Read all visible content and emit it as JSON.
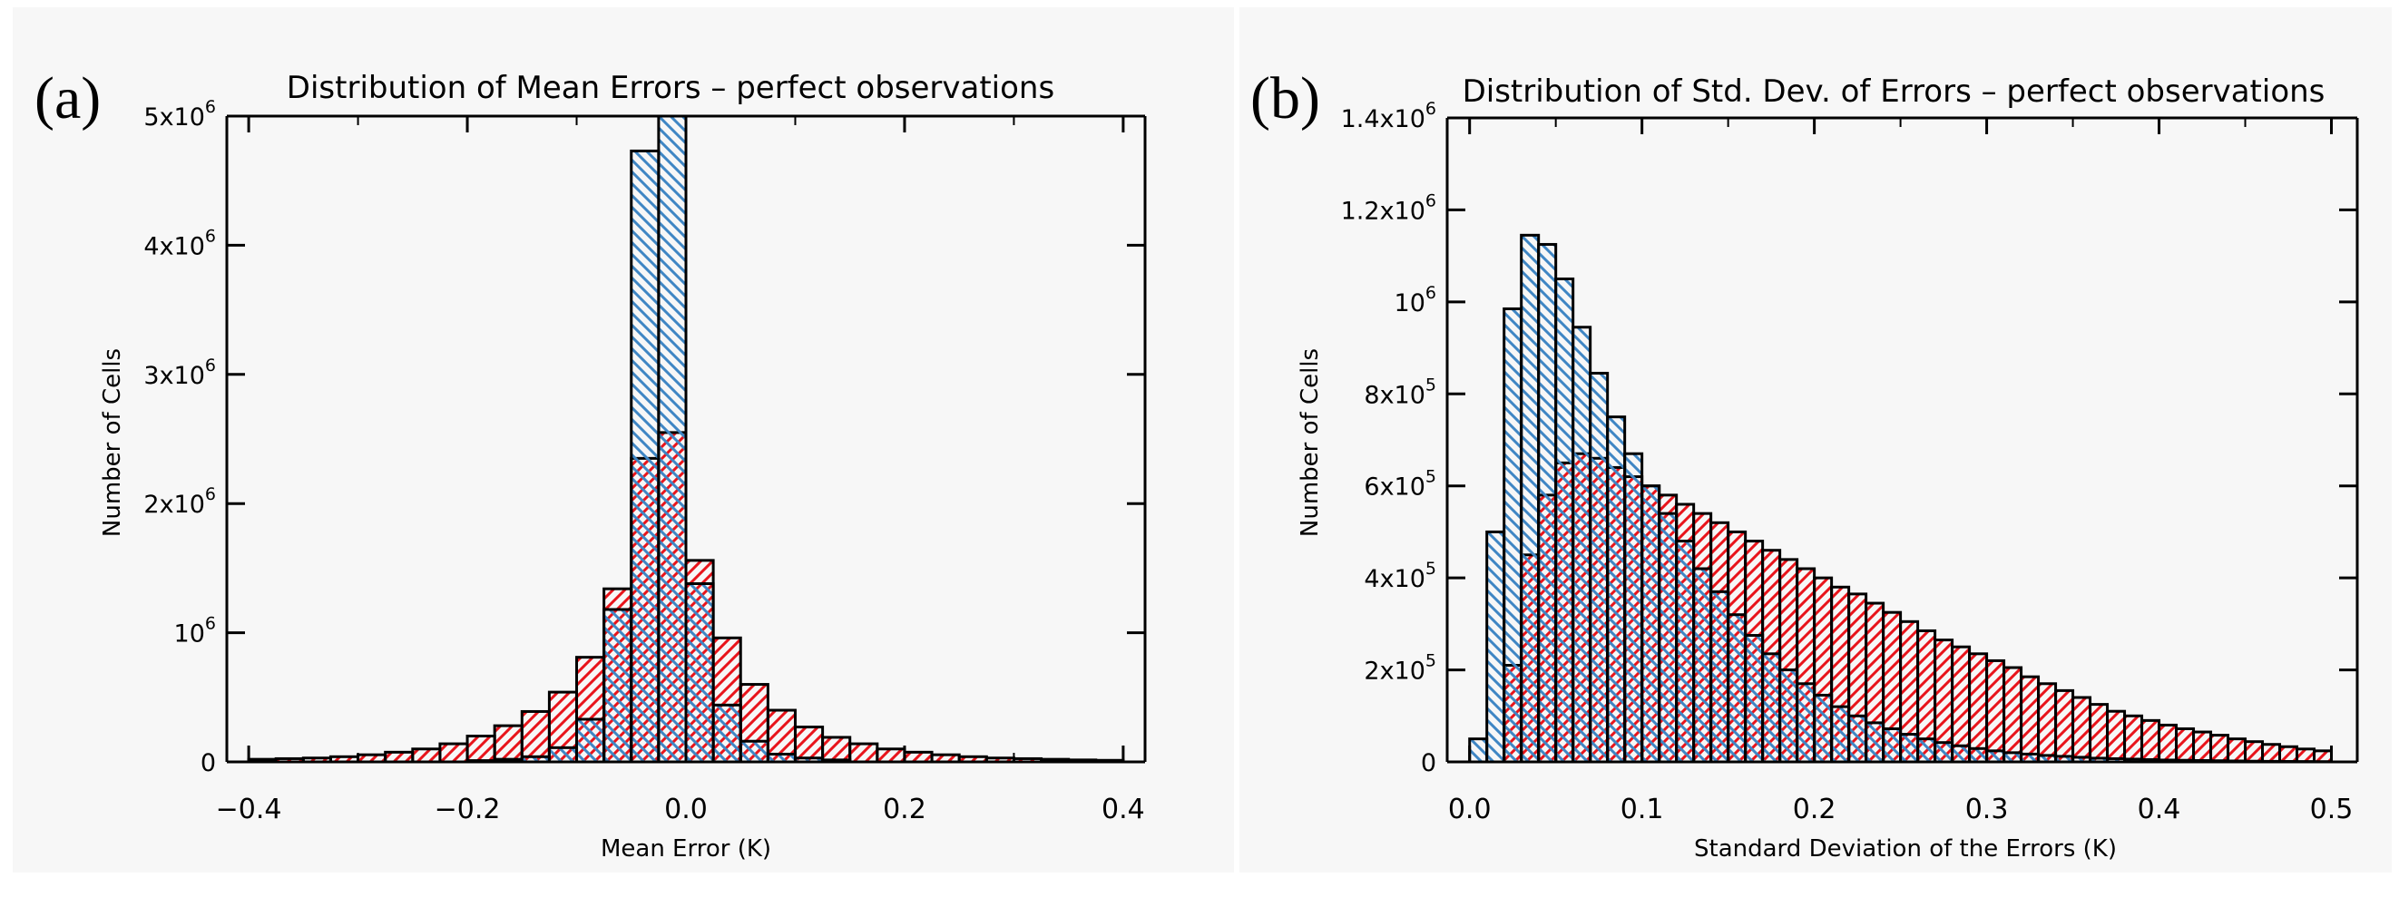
{
  "colors": {
    "background": "#ffffff",
    "panel_background": "#f7f7f7",
    "axis": "#000000",
    "series_red": "#e8141b",
    "series_blue": "#3f86c4"
  },
  "chart_data": [
    {
      "type": "bar",
      "panel_label": "(a)",
      "title": "Distribution of Mean Errors – perfect observations",
      "xlabel": "Mean Error (K)",
      "ylabel": "Number of Cells",
      "xlim": [
        -0.42,
        0.42
      ],
      "ylim": [
        0,
        5000000
      ],
      "grid": false,
      "xticks": [
        {
          "value": -0.4,
          "label": "−0.4"
        },
        {
          "value": -0.2,
          "label": "−0.2"
        },
        {
          "value": 0.0,
          "label": "0.0"
        },
        {
          "value": 0.2,
          "label": "0.2"
        },
        {
          "value": 0.4,
          "label": "0.4"
        }
      ],
      "yticks": [
        {
          "value": 0,
          "base": "0",
          "exp": ""
        },
        {
          "value": 1000000,
          "base": "10",
          "exp": "6"
        },
        {
          "value": 2000000,
          "base": "2x10",
          "exp": "6"
        },
        {
          "value": 3000000,
          "base": "3x10",
          "exp": "6"
        },
        {
          "value": 4000000,
          "base": "4x10",
          "exp": "6"
        },
        {
          "value": 5000000,
          "base": "5x10",
          "exp": "6"
        }
      ],
      "bin_start": -0.4,
      "bin_width": 0.025,
      "series": [
        {
          "name": "red",
          "pattern": "red-hatch",
          "values": [
            20000,
            25000,
            30000,
            40000,
            55000,
            75000,
            100000,
            140000,
            200000,
            280000,
            390000,
            540000,
            810000,
            1340000,
            2350000,
            2550000,
            1560000,
            960000,
            600000,
            400000,
            270000,
            190000,
            140000,
            100000,
            75000,
            55000,
            40000,
            30000,
            25000,
            20000,
            15000,
            12000
          ]
        },
        {
          "name": "blue",
          "pattern": "blue-hatch",
          "values": [
            0,
            0,
            0,
            0,
            0,
            0,
            0,
            0,
            10000,
            20000,
            40000,
            110000,
            330000,
            1180000,
            4730000,
            5000000,
            1380000,
            440000,
            160000,
            60000,
            30000,
            15000,
            0,
            0,
            0,
            0,
            0,
            0,
            0,
            0,
            0,
            0
          ]
        }
      ]
    },
    {
      "type": "bar",
      "panel_label": "(b)",
      "title": "Distribution of Std. Dev. of Errors – perfect observations",
      "xlabel": "Standard Deviation of the Errors (K)",
      "ylabel": "Number of Cells",
      "xlim": [
        -0.013,
        0.515
      ],
      "ylim": [
        0,
        1400000
      ],
      "grid": false,
      "xticks": [
        {
          "value": 0.0,
          "label": "0.0"
        },
        {
          "value": 0.1,
          "label": "0.1"
        },
        {
          "value": 0.2,
          "label": "0.2"
        },
        {
          "value": 0.3,
          "label": "0.3"
        },
        {
          "value": 0.4,
          "label": "0.4"
        },
        {
          "value": 0.5,
          "label": "0.5"
        }
      ],
      "yticks": [
        {
          "value": 0,
          "base": "0",
          "exp": ""
        },
        {
          "value": 200000,
          "base": "2x10",
          "exp": "5"
        },
        {
          "value": 400000,
          "base": "4x10",
          "exp": "5"
        },
        {
          "value": 600000,
          "base": "6x10",
          "exp": "5"
        },
        {
          "value": 800000,
          "base": "8x10",
          "exp": "5"
        },
        {
          "value": 1000000,
          "base": "10",
          "exp": "6"
        },
        {
          "value": 1200000,
          "base": "1.2x10",
          "exp": "6"
        },
        {
          "value": 1400000,
          "base": "1.4x10",
          "exp": "6"
        }
      ],
      "bin_start": 0.0,
      "bin_width": 0.01,
      "series": [
        {
          "name": "red",
          "pattern": "red-hatch",
          "values": [
            0,
            0,
            210000,
            450000,
            580000,
            650000,
            670000,
            660000,
            640000,
            620000,
            600000,
            580000,
            560000,
            540000,
            520000,
            500000,
            480000,
            460000,
            440000,
            420000,
            400000,
            380000,
            365000,
            345000,
            325000,
            305000,
            285000,
            265000,
            250000,
            235000,
            220000,
            205000,
            185000,
            170000,
            155000,
            140000,
            125000,
            110000,
            100000,
            90000,
            80000,
            72000,
            65000,
            58000,
            50000,
            44000,
            38000,
            33000,
            28000,
            24000
          ]
        },
        {
          "name": "blue",
          "pattern": "blue-hatch",
          "values": [
            50000,
            500000,
            985000,
            1145000,
            1125000,
            1050000,
            945000,
            845000,
            750000,
            670000,
            600000,
            540000,
            480000,
            420000,
            370000,
            320000,
            275000,
            235000,
            200000,
            170000,
            145000,
            120000,
            100000,
            85000,
            72000,
            60000,
            50000,
            42000,
            35000,
            29000,
            24000,
            20000,
            17000,
            14000,
            12000,
            10000,
            8000,
            7000,
            6000,
            5000,
            4000,
            3500,
            3000,
            2500,
            2000,
            1500,
            1200,
            1000,
            800,
            600
          ]
        }
      ]
    }
  ]
}
